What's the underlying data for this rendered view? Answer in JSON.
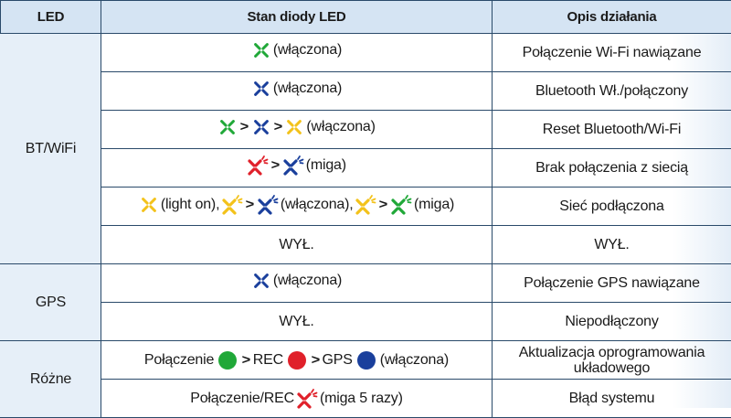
{
  "colors": {
    "green": "#20a838",
    "blue": "#1a3f9c",
    "yellow": "#f3c21a",
    "red": "#e0202a",
    "header_bg": "#d5e4f3",
    "border": "#2a4a6a"
  },
  "header": {
    "led": "LED",
    "state": "Stan diody LED",
    "desc": "Opis działania"
  },
  "groups": {
    "bt_wifi": "BT/WiFi",
    "gps": "GPS",
    "misc": "Różne"
  },
  "rows": [
    {
      "state": {
        "i1": "x-icon-green",
        "t1": "(włączona)"
      },
      "desc": "Połączenie Wi-Fi nawiązane"
    },
    {
      "state": {
        "i1": "x-icon-blue",
        "t1": "(włączona)"
      },
      "desc": "Bluetooth Wł./połączony"
    },
    {
      "state": {
        "i1": "x-icon-green",
        "a1": ">",
        "i2": "x-icon-blue",
        "a2": ">",
        "i3": "x-icon-yellow",
        "t1": "(włączona)"
      },
      "desc": "Reset Bluetooth/Wi-Fi"
    },
    {
      "state": {
        "i1": "x-blink-icon-red",
        "a1": ">",
        "i2": "x-blink-icon-blue",
        "t1": "(miga)"
      },
      "desc": "Brak połączenia z siecią"
    },
    {
      "state": {
        "i1": "x-icon-yellow",
        "t1": "(light on),",
        "i2": "x-blink-icon-yellow",
        "a1": ">",
        "i3": "x-blink-icon-blue",
        "t2": "(włączona),",
        "i4": "x-blink-icon-yellow",
        "a2": ">",
        "i5": "x-blink-icon-green",
        "t3": "(miga)"
      },
      "desc": "Sieć podłączona"
    },
    {
      "state": {
        "t1": "WYŁ."
      },
      "desc": "WYŁ."
    },
    {
      "state": {
        "i1": "x-icon-blue",
        "t1": "(włączona)"
      },
      "desc": "Połączenie GPS nawiązane"
    },
    {
      "state": {
        "t1": "WYŁ."
      },
      "desc": "Niepodłączony"
    },
    {
      "state": {
        "t1": "Połączenie",
        "d1": "green-dot",
        "a1": ">",
        "t2": "REC",
        "d2": "red-dot",
        "a2": ">",
        "t3": "GPS",
        "d3": "blue-dot",
        "t4": "(włączona)"
      },
      "desc": "Aktualizacja oprogramowania układowego"
    },
    {
      "state": {
        "t1": "Połączenie/REC",
        "i1": "x-blink-icon-red",
        "t2": "(miga 5 razy)"
      },
      "desc": "Błąd systemu"
    }
  ]
}
